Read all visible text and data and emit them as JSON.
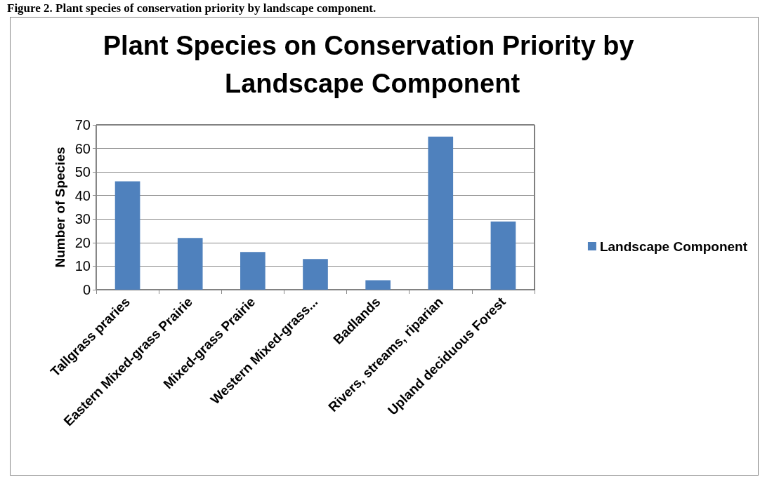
{
  "chart_data": {
    "type": "bar",
    "title": "Plant Species on Conservation Priority by Landscape Component",
    "ylabel": "Number of Species",
    "annotations": [
      "Figure 2. Plant species of conservation priority by landscape component."
    ],
    "categories": [
      "Tallgrass praries",
      "Eastern Mixed-grass Prairie",
      "Mixed-grass Prairie",
      "Western Mixed-grass...",
      "Badlands",
      "Rivers, streams, riparian",
      "Upland deciduous Forest"
    ],
    "series": [
      {
        "name": "Landscape Component",
        "color": "#4f81bd",
        "values": [
          46,
          22,
          16,
          13,
          4,
          65,
          29
        ]
      }
    ],
    "ylim": [
      0,
      70
    ],
    "yticks": [
      0,
      10,
      20,
      30,
      40,
      50,
      60,
      70
    ],
    "grid": "y",
    "legend": "right"
  }
}
